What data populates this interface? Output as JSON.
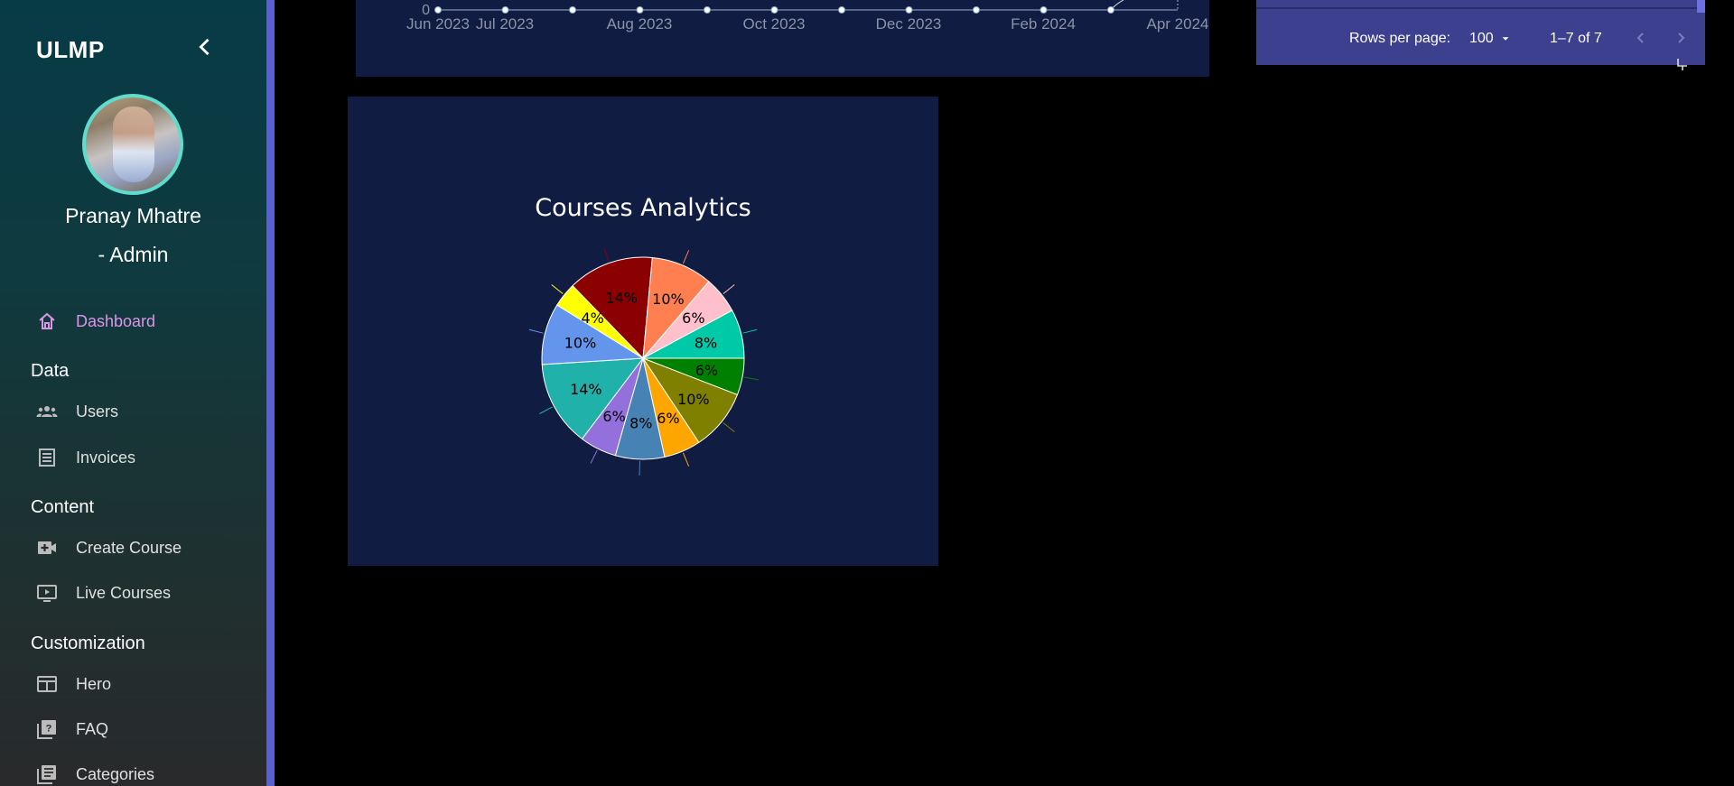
{
  "sidebar": {
    "brand": "ULMP",
    "user_name": "Pranay Mhatre",
    "user_role": "- Admin",
    "items": [
      {
        "label": "Dashboard",
        "icon": "home-icon",
        "active": true
      },
      {
        "label": "Users",
        "icon": "users-icon"
      },
      {
        "label": "Invoices",
        "icon": "invoice-icon"
      },
      {
        "label": "Create Course",
        "icon": "video-add-icon"
      },
      {
        "label": "Live Courses",
        "icon": "monitor-play-icon"
      },
      {
        "label": "Hero",
        "icon": "web-layout-icon"
      },
      {
        "label": "FAQ",
        "icon": "faq-icon"
      },
      {
        "label": "Categories",
        "icon": "library-icon"
      }
    ],
    "sections": {
      "data": "Data",
      "content": "Content",
      "customization": "Customization"
    },
    "colors": {
      "accent": "#d995e6",
      "avatar_border": "#5fdccb",
      "border": "#5b5fd6"
    }
  },
  "table": {
    "rows_per_page_label": "Rows per page:",
    "rows_per_page_value": "100",
    "range": "1–7 of 7"
  },
  "line_chart": {
    "y_tick": "0",
    "x_labels": [
      "Jun 2023",
      "Jul 2023",
      "Aug 2023",
      "Oct 2023",
      "Dec 2023",
      "Feb 2024",
      "Apr 2024"
    ]
  },
  "chart_data": {
    "type": "pie",
    "title": "Courses Analytics",
    "slices": [
      {
        "value": 6,
        "label": "6%",
        "color": "#008000"
      },
      {
        "value": 10,
        "label": "10%",
        "color": "#808000"
      },
      {
        "value": 6,
        "label": "6%",
        "color": "#ffa500"
      },
      {
        "value": 8,
        "label": "8%",
        "color": "#4682b4"
      },
      {
        "value": 6,
        "label": "6%",
        "color": "#9370db"
      },
      {
        "value": 14,
        "label": "14%",
        "color": "#20b2aa"
      },
      {
        "value": 10,
        "label": "10%",
        "color": "#6495ed"
      },
      {
        "value": 4,
        "label": "4%",
        "color": "#ffff00"
      },
      {
        "value": 14,
        "label": "14%",
        "color": "#8b0000"
      },
      {
        "value": 10,
        "label": "10%",
        "color": "#ff7f50"
      },
      {
        "value": 6,
        "label": "6%",
        "color": "#ffc0cb"
      },
      {
        "value": 8,
        "label": "8%",
        "color": "#00c9a7"
      }
    ],
    "legend": "none"
  }
}
